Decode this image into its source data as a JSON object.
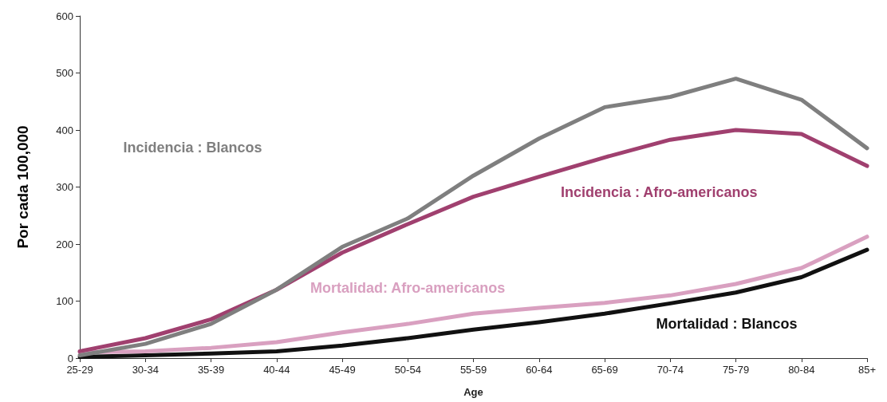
{
  "chart_data": {
    "type": "line",
    "xlabel": "Age",
    "ylabel": "Por cada 100,000",
    "categories": [
      "25-29",
      "30-34",
      "35-39",
      "40-44",
      "45-49",
      "50-54",
      "55-59",
      "60-64",
      "65-69",
      "70-74",
      "75-79",
      "80-84",
      "85+"
    ],
    "ylim": [
      0,
      600
    ],
    "yticks": [
      0,
      100,
      200,
      300,
      400,
      500,
      600
    ],
    "grid": false,
    "legend": false,
    "marker": "none",
    "line_style": "solid",
    "series": [
      {
        "name": "Incidencia : Blancos",
        "color": "#7f7f7f",
        "values": [
          5,
          25,
          60,
          120,
          195,
          245,
          320,
          385,
          440,
          458,
          490,
          453,
          368
        ]
      },
      {
        "name": "Incidencia : Afro-americanos",
        "color": "#a0406f",
        "values": [
          12,
          35,
          68,
          120,
          185,
          235,
          283,
          318,
          352,
          383,
          400,
          393,
          337
        ]
      },
      {
        "name": "Mortalidad: Afro-americanos",
        "color": "#d9a0c0",
        "values": [
          10,
          12,
          18,
          28,
          45,
          60,
          78,
          88,
          97,
          110,
          130,
          158,
          213
        ]
      },
      {
        "name": "Mortalidad : Blancos",
        "color": "#111111",
        "values": [
          2,
          5,
          8,
          12,
          22,
          35,
          50,
          63,
          78,
          96,
          115,
          142,
          190
        ]
      }
    ]
  }
}
